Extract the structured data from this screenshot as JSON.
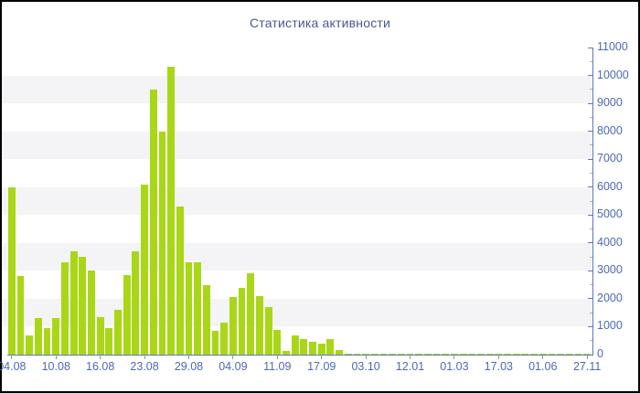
{
  "window": {
    "border_color": "#000000",
    "background": "#ffffff"
  },
  "chart_data": {
    "type": "bar",
    "title": "Статистика активности",
    "legend": "none",
    "grid": "alternating horizontal bands of 1000 units",
    "y_axis_side": "right",
    "ylim": [
      0,
      11000
    ],
    "y_major_step": 1000,
    "y_minor_step": 500,
    "y_tick_labels": [
      "0",
      "1000",
      "2000",
      "3000",
      "4000",
      "5000",
      "6000",
      "7000",
      "8000",
      "9000",
      "10000",
      "11000"
    ],
    "x_tick_labels": [
      "04.08",
      "10.08",
      "16.08",
      "23.08",
      "29.08",
      "04.09",
      "11.09",
      "17.09",
      "03.10",
      "12.01",
      "01.03",
      "17.03",
      "01.06",
      "27.11"
    ],
    "x_tick_every": 5,
    "values": [
      6000,
      2800,
      700,
      1300,
      950,
      1300,
      3300,
      3700,
      3500,
      3000,
      1350,
      950,
      1600,
      2850,
      3700,
      6100,
      9500,
      8000,
      10300,
      5300,
      3300,
      3300,
      2500,
      850,
      1150,
      2050,
      2400,
      2900,
      2100,
      1700,
      900,
      130,
      700,
      560,
      460,
      380,
      570,
      180,
      40,
      30,
      35,
      30,
      40,
      30,
      35,
      40,
      30,
      35,
      30,
      40,
      30,
      35,
      30,
      40,
      35,
      30,
      40,
      30,
      35,
      30,
      40,
      35,
      30,
      40,
      30,
      35
    ],
    "colors": {
      "bar": "#a9d717",
      "band": "#f4f4f6",
      "axis": "#5b79b8",
      "minor_tick": "#b0b0b0",
      "x_tick": "#8494bb",
      "labels": "#4d69b1",
      "title": "#47598f"
    }
  }
}
